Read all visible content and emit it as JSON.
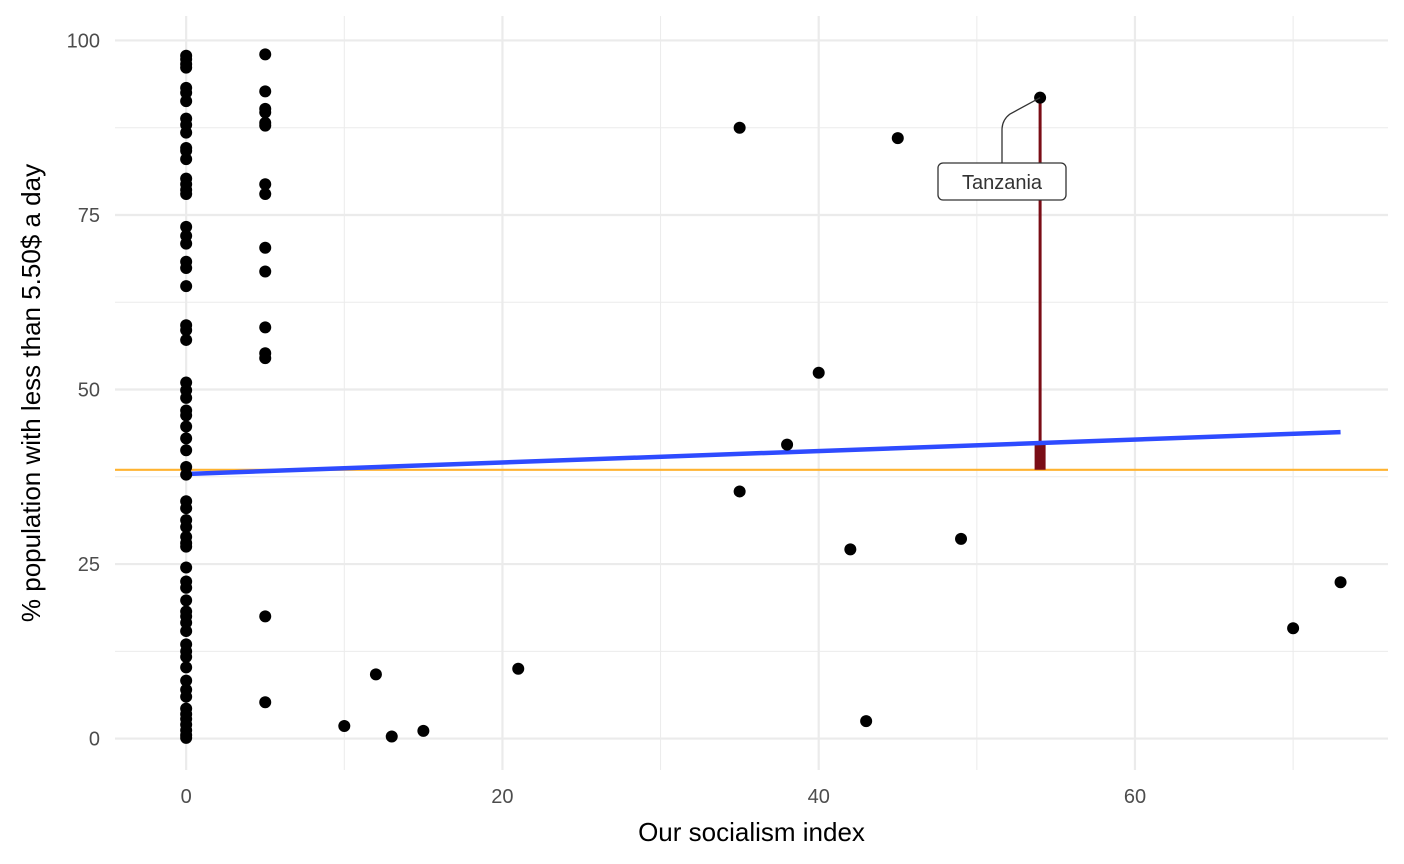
{
  "chart_data": {
    "type": "scatter",
    "title": "",
    "xlabel": "Our socialism index",
    "ylabel": "% population with less than 5.50$ a day",
    "xlim": [
      -4.5,
      76
    ],
    "ylim": [
      -4.5,
      103.5
    ],
    "x_ticks": [
      0,
      20,
      40,
      60
    ],
    "y_ticks": [
      0,
      25,
      50,
      75,
      100
    ],
    "x_minor": [
      10,
      30,
      50,
      70
    ],
    "y_minor": [
      12.5,
      37.5,
      62.5,
      87.5
    ],
    "grid": true,
    "legend": "none",
    "colors": {
      "points": "#000000",
      "trend": "#2e4bff",
      "mean_line": "#ffb330",
      "residual": "#7a0d16",
      "grid": "#ebebeb"
    },
    "points": [
      [
        0,
        97.8
      ],
      [
        0,
        97.3
      ],
      [
        0,
        96.6
      ],
      [
        0,
        96.1
      ],
      [
        0,
        93.2
      ],
      [
        0,
        92.5
      ],
      [
        0,
        91.3
      ],
      [
        0,
        88.8
      ],
      [
        0,
        87.9
      ],
      [
        0,
        86.8
      ],
      [
        0,
        84.6
      ],
      [
        0,
        84.2
      ],
      [
        0,
        83.0
      ],
      [
        0,
        80.2
      ],
      [
        0,
        79.4
      ],
      [
        0,
        78.6
      ],
      [
        0,
        78.0
      ],
      [
        0,
        73.3
      ],
      [
        0,
        72.0
      ],
      [
        0,
        70.9
      ],
      [
        0,
        68.3
      ],
      [
        0,
        67.4
      ],
      [
        0,
        64.8
      ],
      [
        0,
        59.2
      ],
      [
        0,
        58.5
      ],
      [
        0,
        57.1
      ],
      [
        0,
        51.0
      ],
      [
        0,
        49.9
      ],
      [
        0,
        48.8
      ],
      [
        0,
        47.0
      ],
      [
        0,
        46.3
      ],
      [
        0,
        44.7
      ],
      [
        0,
        43.0
      ],
      [
        0,
        41.3
      ],
      [
        0,
        38.9
      ],
      [
        0,
        37.8
      ],
      [
        0,
        34.0
      ],
      [
        0,
        33.0
      ],
      [
        0,
        31.3
      ],
      [
        0,
        30.3
      ],
      [
        0,
        28.9
      ],
      [
        0,
        28.0
      ],
      [
        0,
        27.5
      ],
      [
        0,
        24.5
      ],
      [
        0,
        22.5
      ],
      [
        0,
        21.6
      ],
      [
        0,
        19.8
      ],
      [
        0,
        18.2
      ],
      [
        0,
        17.5
      ],
      [
        0,
        16.6
      ],
      [
        0,
        15.4
      ],
      [
        0,
        13.5
      ],
      [
        0,
        12.5
      ],
      [
        0,
        11.7
      ],
      [
        0,
        10.2
      ],
      [
        0,
        8.3
      ],
      [
        0,
        7.0
      ],
      [
        0,
        6.0
      ],
      [
        0,
        4.3
      ],
      [
        0,
        3.5
      ],
      [
        0,
        2.8
      ],
      [
        0,
        2.0
      ],
      [
        0,
        1.2
      ],
      [
        0,
        0.5
      ],
      [
        0,
        0.1
      ],
      [
        5,
        98.0
      ],
      [
        5,
        92.7
      ],
      [
        5,
        90.2
      ],
      [
        5,
        89.7
      ],
      [
        5,
        88.2
      ],
      [
        5,
        87.8
      ],
      [
        5,
        79.4
      ],
      [
        5,
        78.0
      ],
      [
        5,
        70.3
      ],
      [
        5,
        66.9
      ],
      [
        5,
        58.9
      ],
      [
        5,
        55.2
      ],
      [
        5,
        54.5
      ],
      [
        5,
        17.5
      ],
      [
        5,
        5.2
      ],
      [
        10,
        1.8
      ],
      [
        12,
        9.2
      ],
      [
        13,
        0.3
      ],
      [
        15,
        1.1
      ],
      [
        21,
        10.0
      ],
      [
        35,
        87.5
      ],
      [
        35,
        35.4
      ],
      [
        38,
        42.1
      ],
      [
        40,
        52.4
      ],
      [
        42,
        27.1
      ],
      [
        43,
        2.5
      ],
      [
        45,
        86.0
      ],
      [
        49,
        28.6
      ],
      [
        54,
        91.8
      ],
      [
        70,
        15.8
      ],
      [
        73,
        22.4
      ]
    ],
    "trend_line": {
      "x": [
        0,
        73
      ],
      "y": [
        37.9,
        43.9
      ]
    },
    "mean_line": {
      "y": 38.5
    },
    "highlight": {
      "label": "Tanzania",
      "x": 54,
      "y": 91.8,
      "fitted": 42.3
    }
  }
}
